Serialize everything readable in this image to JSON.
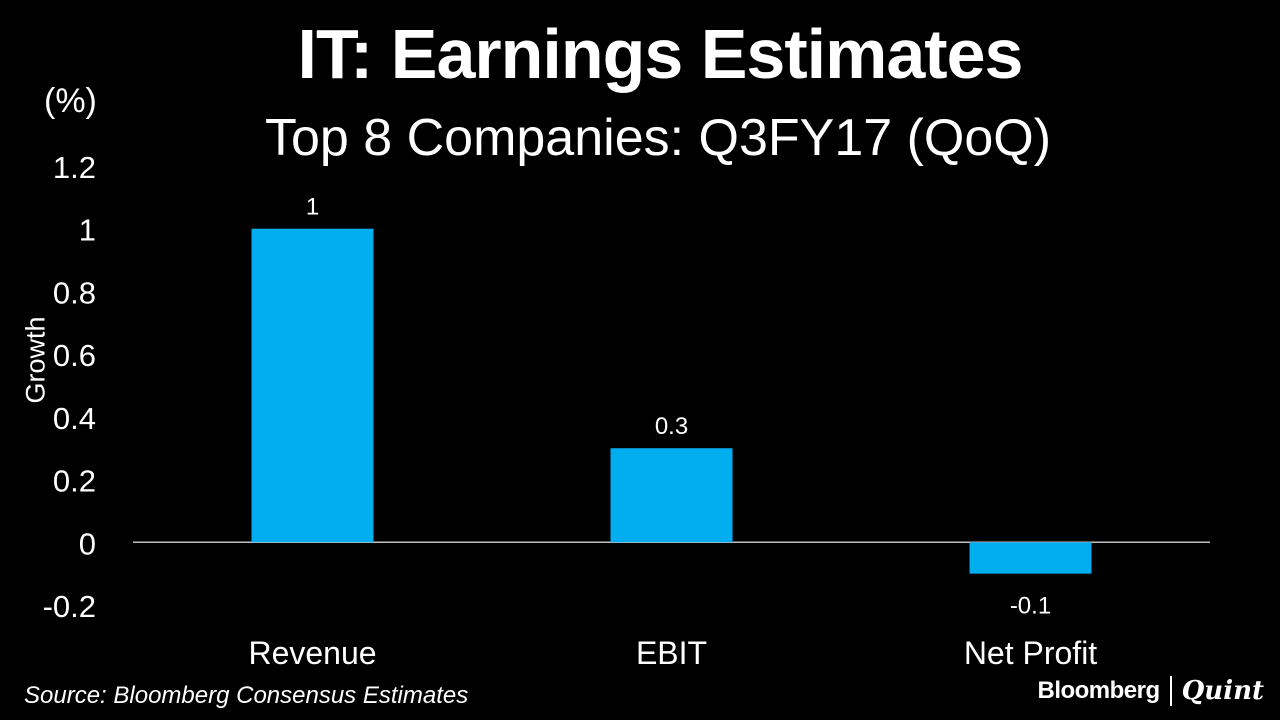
{
  "chart_data": {
    "type": "bar",
    "title": "IT: Earnings Estimates",
    "subtitle": "Top 8 Companies: Q3FY17 (QoQ)",
    "unit_label": "(%)",
    "ylabel": "Growth",
    "xlabel": "",
    "categories": [
      "Revenue",
      "EBIT",
      "Net Profit"
    ],
    "values": [
      1,
      0.3,
      -0.1
    ],
    "data_labels": [
      "1",
      "0.3",
      "-0.1"
    ],
    "yticks": [
      1.2,
      1,
      0.8,
      0.6,
      0.4,
      0.2,
      0,
      -0.2
    ],
    "ytick_labels": [
      "1.2",
      "1",
      "0.8",
      "0.6",
      "0.4",
      "0.2",
      "0",
      "-0.2"
    ],
    "ylim": [
      -0.2,
      1.2
    ],
    "grid": false,
    "bar_color": "#00aeef"
  },
  "footer": {
    "source": "Source: Bloomberg Consensus Estimates",
    "brand_left": "Bloomberg",
    "brand_right": "Quint"
  }
}
